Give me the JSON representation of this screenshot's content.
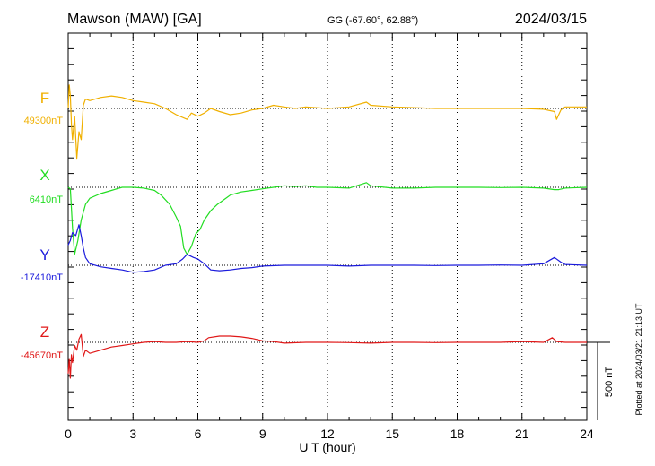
{
  "header": {
    "station": "Mawson (MAW)  [GA]",
    "coords": "GG (-67.60°,  62.88°)",
    "date": "2024/03/15"
  },
  "plotted_note": "Plotted at 2024/03/21 21:13 UT",
  "chart_data": {
    "type": "line",
    "xlabel": "U T (hour)",
    "xlim": [
      0,
      24
    ],
    "xticks": [
      0,
      3,
      6,
      9,
      12,
      15,
      18,
      21,
      24
    ],
    "scale_bar": {
      "label": "500 nT",
      "value_nT": 500
    },
    "series": [
      {
        "name": "F",
        "baseline_label": "49300nT",
        "baseline": 49300,
        "color": "#f0b000",
        "points": [
          [
            0,
            49300
          ],
          [
            0.05,
            49450
          ],
          [
            0.1,
            49380
          ],
          [
            0.15,
            49200
          ],
          [
            0.2,
            49100
          ],
          [
            0.3,
            49250
          ],
          [
            0.4,
            48980
          ],
          [
            0.5,
            49150
          ],
          [
            0.6,
            49100
          ],
          [
            0.7,
            49320
          ],
          [
            0.8,
            49360
          ],
          [
            1,
            49350
          ],
          [
            1.5,
            49370
          ],
          [
            2,
            49380
          ],
          [
            2.5,
            49370
          ],
          [
            3,
            49350
          ],
          [
            3.5,
            49340
          ],
          [
            4,
            49330
          ],
          [
            4.5,
            49300
          ],
          [
            5,
            49260
          ],
          [
            5.5,
            49230
          ],
          [
            5.7,
            49270
          ],
          [
            6,
            49250
          ],
          [
            6.3,
            49270
          ],
          [
            6.6,
            49300
          ],
          [
            7,
            49280
          ],
          [
            7.5,
            49260
          ],
          [
            8,
            49270
          ],
          [
            8.5,
            49290
          ],
          [
            9,
            49300
          ],
          [
            9.5,
            49320
          ],
          [
            10,
            49310
          ],
          [
            10.5,
            49300
          ],
          [
            11,
            49310
          ],
          [
            12,
            49300
          ],
          [
            13,
            49310
          ],
          [
            13.8,
            49340
          ],
          [
            14,
            49320
          ],
          [
            15,
            49310
          ],
          [
            16,
            49305
          ],
          [
            17,
            49300
          ],
          [
            18,
            49300
          ],
          [
            19,
            49300
          ],
          [
            20,
            49300
          ],
          [
            21,
            49300
          ],
          [
            22,
            49295
          ],
          [
            22.5,
            49280
          ],
          [
            22.6,
            49230
          ],
          [
            22.8,
            49290
          ],
          [
            23,
            49310
          ],
          [
            23.5,
            49310
          ],
          [
            24,
            49310
          ]
        ]
      },
      {
        "name": "X",
        "baseline_label": "6410nT",
        "baseline": 6410,
        "color": "#22dd22",
        "points": [
          [
            0,
            6410
          ],
          [
            0.1,
            6400
          ],
          [
            0.2,
            6150
          ],
          [
            0.3,
            5980
          ],
          [
            0.45,
            6070
          ],
          [
            0.6,
            6200
          ],
          [
            0.8,
            6300
          ],
          [
            1,
            6340
          ],
          [
            1.5,
            6370
          ],
          [
            2,
            6390
          ],
          [
            2.5,
            6410
          ],
          [
            3,
            6410
          ],
          [
            3.5,
            6405
          ],
          [
            4,
            6390
          ],
          [
            4.3,
            6360
          ],
          [
            4.7,
            6300
          ],
          [
            5,
            6220
          ],
          [
            5.2,
            6160
          ],
          [
            5.35,
            6020
          ],
          [
            5.5,
            5980
          ],
          [
            5.7,
            6030
          ],
          [
            5.9,
            6110
          ],
          [
            6.1,
            6140
          ],
          [
            6.3,
            6200
          ],
          [
            6.6,
            6260
          ],
          [
            6.9,
            6300
          ],
          [
            7.5,
            6360
          ],
          [
            8,
            6380
          ],
          [
            8.5,
            6390
          ],
          [
            9,
            6400
          ],
          [
            9.5,
            6410
          ],
          [
            10,
            6420
          ],
          [
            10.5,
            6415
          ],
          [
            11,
            6420
          ],
          [
            11.5,
            6410
          ],
          [
            12,
            6410
          ],
          [
            13,
            6405
          ],
          [
            13.8,
            6440
          ],
          [
            14,
            6420
          ],
          [
            15,
            6405
          ],
          [
            16,
            6405
          ],
          [
            17,
            6410
          ],
          [
            18,
            6410
          ],
          [
            19,
            6410
          ],
          [
            20,
            6408
          ],
          [
            21,
            6410
          ],
          [
            22,
            6405
          ],
          [
            22.5,
            6395
          ],
          [
            22.7,
            6395
          ],
          [
            23,
            6405
          ],
          [
            24,
            6410
          ]
        ]
      },
      {
        "name": "Y",
        "baseline_label": "-17410nT",
        "baseline": -17410,
        "color": "#1a1adc",
        "points": [
          [
            0,
            -17280
          ],
          [
            0.1,
            -17250
          ],
          [
            0.2,
            -17200
          ],
          [
            0.35,
            -17220
          ],
          [
            0.5,
            -17150
          ],
          [
            0.6,
            -17220
          ],
          [
            0.7,
            -17300
          ],
          [
            0.8,
            -17360
          ],
          [
            1,
            -17400
          ],
          [
            1.5,
            -17420
          ],
          [
            2,
            -17430
          ],
          [
            2.5,
            -17440
          ],
          [
            3,
            -17455
          ],
          [
            3.5,
            -17450
          ],
          [
            4,
            -17440
          ],
          [
            4.5,
            -17410
          ],
          [
            5,
            -17400
          ],
          [
            5.3,
            -17370
          ],
          [
            5.5,
            -17340
          ],
          [
            5.8,
            -17360
          ],
          [
            6,
            -17370
          ],
          [
            6.3,
            -17400
          ],
          [
            6.6,
            -17440
          ],
          [
            7,
            -17445
          ],
          [
            7.5,
            -17440
          ],
          [
            8,
            -17430
          ],
          [
            8.5,
            -17425
          ],
          [
            9,
            -17415
          ],
          [
            10,
            -17410
          ],
          [
            11,
            -17410
          ],
          [
            12,
            -17410
          ],
          [
            13,
            -17415
          ],
          [
            14,
            -17410
          ],
          [
            15,
            -17410
          ],
          [
            16,
            -17410
          ],
          [
            17,
            -17412
          ],
          [
            18,
            -17410
          ],
          [
            19,
            -17410
          ],
          [
            20,
            -17408
          ],
          [
            21,
            -17410
          ],
          [
            22,
            -17400
          ],
          [
            22.5,
            -17360
          ],
          [
            22.8,
            -17390
          ],
          [
            23,
            -17405
          ],
          [
            24,
            -17410
          ]
        ]
      },
      {
        "name": "Z",
        "baseline_label": "-45670nT",
        "baseline": -45670,
        "color": "#e01818",
        "points": [
          [
            0,
            -45870
          ],
          [
            0.05,
            -45780
          ],
          [
            0.1,
            -45900
          ],
          [
            0.15,
            -45750
          ],
          [
            0.2,
            -45800
          ],
          [
            0.3,
            -45690
          ],
          [
            0.4,
            -45720
          ],
          [
            0.5,
            -45650
          ],
          [
            0.6,
            -45620
          ],
          [
            0.7,
            -45760
          ],
          [
            0.8,
            -45720
          ],
          [
            1,
            -45740
          ],
          [
            1.5,
            -45720
          ],
          [
            2,
            -45700
          ],
          [
            2.5,
            -45690
          ],
          [
            3,
            -45680
          ],
          [
            3.5,
            -45670
          ],
          [
            4,
            -45665
          ],
          [
            4.5,
            -45670
          ],
          [
            5,
            -45670
          ],
          [
            5.5,
            -45665
          ],
          [
            6,
            -45670
          ],
          [
            6.3,
            -45660
          ],
          [
            6.5,
            -45640
          ],
          [
            7,
            -45630
          ],
          [
            7.5,
            -45630
          ],
          [
            8,
            -45635
          ],
          [
            8.5,
            -45645
          ],
          [
            9,
            -45660
          ],
          [
            9.5,
            -45665
          ],
          [
            10,
            -45675
          ],
          [
            11,
            -45670
          ],
          [
            12,
            -45670
          ],
          [
            13,
            -45672
          ],
          [
            14,
            -45675
          ],
          [
            15,
            -45670
          ],
          [
            16,
            -45670
          ],
          [
            17,
            -45672
          ],
          [
            18,
            -45670
          ],
          [
            19,
            -45670
          ],
          [
            20,
            -45670
          ],
          [
            21,
            -45665
          ],
          [
            22,
            -45670
          ],
          [
            22.4,
            -45640
          ],
          [
            22.6,
            -45665
          ],
          [
            23,
            -45670
          ],
          [
            24,
            -45670
          ]
        ]
      }
    ]
  }
}
